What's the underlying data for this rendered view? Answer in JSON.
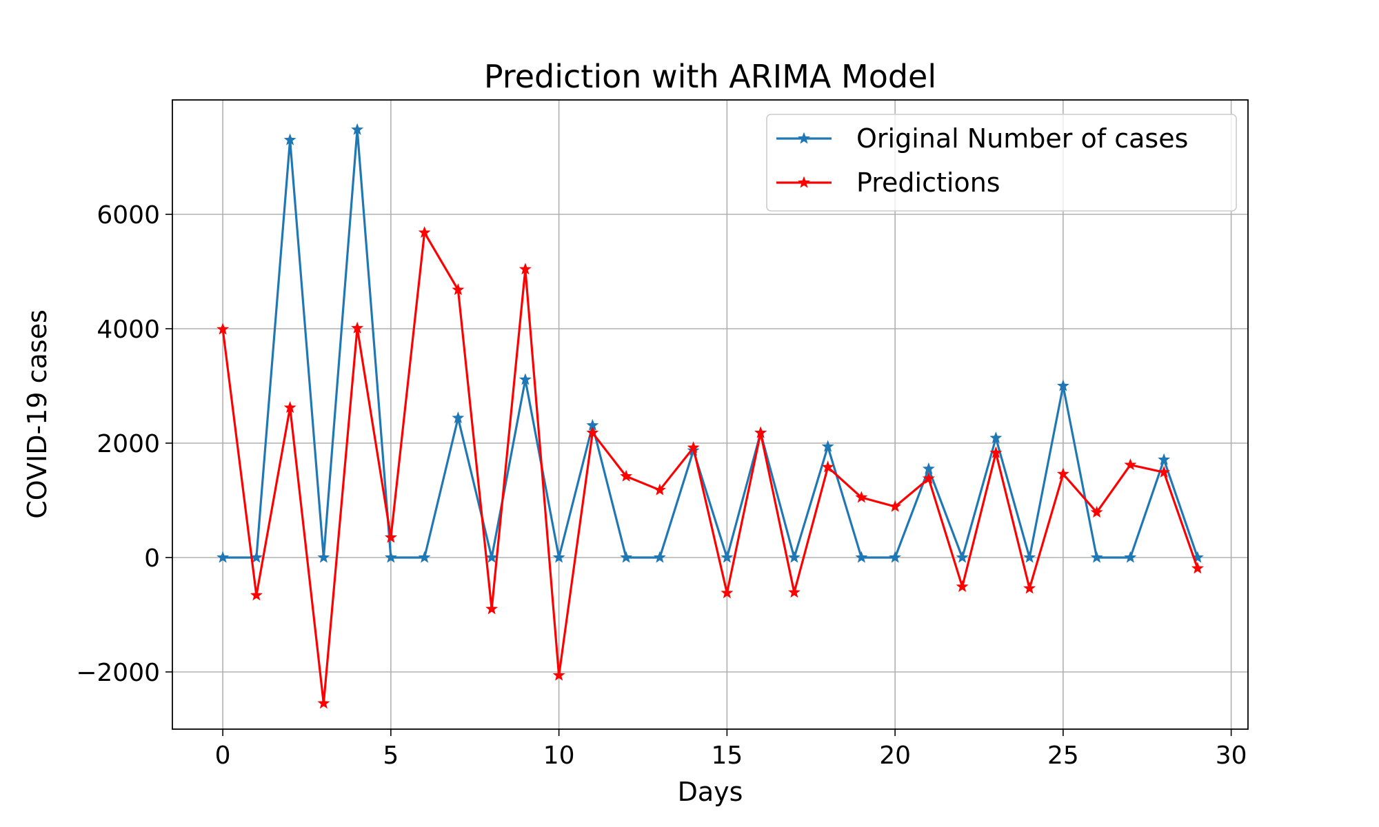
{
  "chart_data": {
    "type": "line",
    "title": "Prediction with ARIMA Model",
    "xlabel": "Days",
    "ylabel": "COVID-19 cases",
    "xlim": [
      -1.5,
      30.5
    ],
    "ylim": [
      -3000,
      8000
    ],
    "xticks": [
      0,
      5,
      10,
      15,
      20,
      25,
      30
    ],
    "yticks": [
      -2000,
      0,
      2000,
      4000,
      6000
    ],
    "ytick_labels": [
      "−2000",
      "0",
      "2000",
      "4000",
      "6000"
    ],
    "grid": true,
    "legend_position": "top-right",
    "x": [
      0,
      1,
      2,
      3,
      4,
      5,
      6,
      7,
      8,
      9,
      10,
      11,
      12,
      13,
      14,
      15,
      16,
      17,
      18,
      19,
      20,
      21,
      22,
      23,
      24,
      25,
      26,
      27,
      28,
      29
    ],
    "series": [
      {
        "name": "Original Number of cases",
        "color": "#1f77b4",
        "marker": "star",
        "values": [
          0,
          0,
          7300,
          0,
          7480,
          0,
          0,
          2440,
          0,
          3110,
          0,
          2310,
          0,
          0,
          1870,
          0,
          2180,
          0,
          1940,
          0,
          0,
          1550,
          0,
          2090,
          0,
          3000,
          0,
          0,
          1710,
          0
        ]
      },
      {
        "name": "Predictions",
        "color": "#ff0000",
        "marker": "star",
        "values": [
          3990,
          -660,
          2620,
          -2550,
          4010,
          350,
          5680,
          4680,
          -900,
          5040,
          -2060,
          2180,
          1420,
          1180,
          1920,
          -620,
          2180,
          -610,
          1580,
          1050,
          890,
          1380,
          -510,
          1830,
          -540,
          1460,
          790,
          1620,
          1490,
          -190
        ]
      }
    ]
  }
}
